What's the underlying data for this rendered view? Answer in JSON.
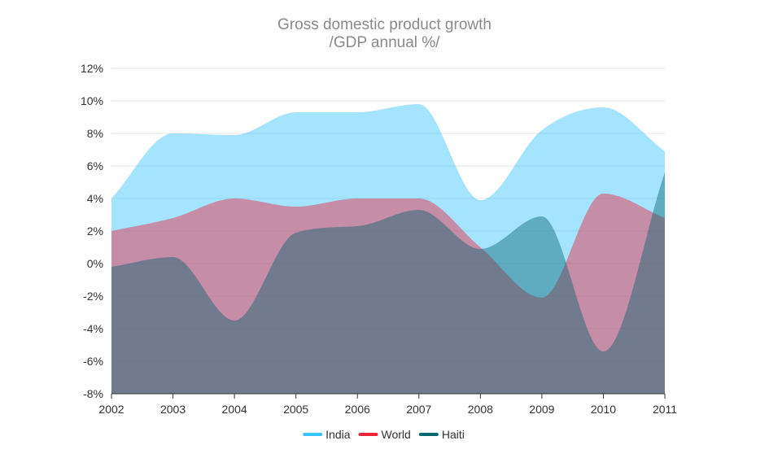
{
  "chart_data": {
    "type": "area",
    "title": "Gross domestic product growth",
    "subtitle": "/GDP annual %/",
    "xlabel": "",
    "ylabel": "",
    "x": [
      "2002",
      "2003",
      "2004",
      "2005",
      "2006",
      "2007",
      "2008",
      "2009",
      "2010",
      "2011"
    ],
    "ylim": [
      -8,
      12
    ],
    "y_ticks": [
      "-8%",
      "-6%",
      "-4%",
      "-2%",
      "0%",
      "2%",
      "4%",
      "6%",
      "8%",
      "10%",
      "12%"
    ],
    "y_tick_values": [
      -8,
      -6,
      -4,
      -2,
      0,
      2,
      4,
      6,
      8,
      10,
      12
    ],
    "grid": true,
    "legend_position": "bottom-center",
    "series": [
      {
        "name": "India",
        "color": "#35c4ff",
        "values": [
          4.0,
          8.0,
          7.9,
          9.3,
          9.3,
          9.8,
          3.9,
          8.2,
          9.6,
          6.9
        ]
      },
      {
        "name": "World",
        "color": "#f0243c",
        "values": [
          2.0,
          2.8,
          4.0,
          3.5,
          4.0,
          4.0,
          1.0,
          -2.1,
          4.3,
          2.8
        ]
      },
      {
        "name": "Haiti",
        "color": "#0a6770",
        "values": [
          -0.2,
          0.4,
          -3.5,
          1.9,
          2.3,
          3.3,
          0.9,
          2.9,
          -5.4,
          5.6
        ]
      }
    ]
  }
}
